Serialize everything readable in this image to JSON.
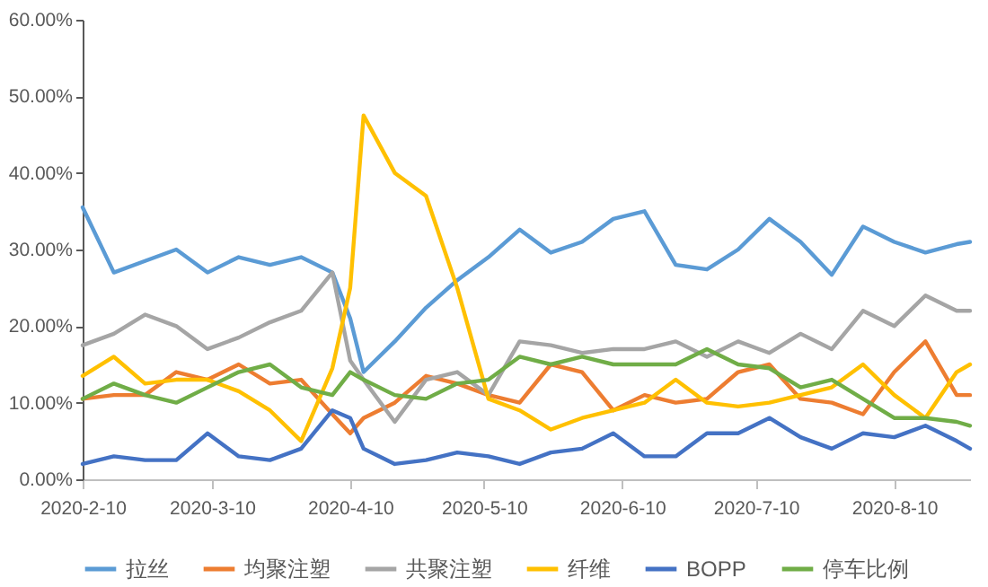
{
  "chart_data": {
    "type": "line",
    "x": [
      "2020-02-10",
      "2020-02-17",
      "2020-02-24",
      "2020-03-02",
      "2020-03-09",
      "2020-03-16",
      "2020-03-23",
      "2020-03-30",
      "2020-04-06",
      "2020-04-10",
      "2020-04-13",
      "2020-04-20",
      "2020-04-27",
      "2020-05-04",
      "2020-05-11",
      "2020-05-18",
      "2020-05-25",
      "2020-06-01",
      "2020-06-08",
      "2020-06-15",
      "2020-06-22",
      "2020-06-29",
      "2020-07-06",
      "2020-07-13",
      "2020-07-20",
      "2020-07-27",
      "2020-08-03",
      "2020-08-10",
      "2020-08-17",
      "2020-08-24",
      "2020-08-27"
    ],
    "series": [
      {
        "name": "拉丝",
        "color": "#5b9bd5",
        "values": [
          35.5,
          27,
          28.5,
          30,
          27,
          29,
          28,
          29,
          27,
          21,
          14,
          18,
          22.4,
          26,
          29,
          32.6,
          29.6,
          31,
          34,
          35,
          28,
          27.4,
          30,
          34,
          31,
          26.7,
          33,
          31,
          29.6,
          30.7,
          31
        ]
      },
      {
        "name": "均聚注塑",
        "color": "#ed7d31",
        "values": [
          10.5,
          11,
          11,
          14,
          13,
          15,
          12.5,
          13,
          8.5,
          6,
          8,
          10,
          13.5,
          12.5,
          11,
          10,
          15,
          14,
          9,
          11,
          10,
          10.5,
          14,
          15,
          10.5,
          10,
          8.5,
          14,
          18,
          11,
          11
        ]
      },
      {
        "name": "共聚注塑",
        "color": "#a5a5a5",
        "values": [
          17.5,
          19,
          21.5,
          20,
          17,
          18.5,
          20.5,
          22,
          27,
          15.5,
          13,
          7.5,
          13,
          14,
          11,
          18,
          17.5,
          16.5,
          17,
          17,
          18,
          16,
          18,
          16.5,
          19,
          17,
          22,
          20,
          24,
          22,
          22
        ]
      },
      {
        "name": "纤维",
        "color": "#ffc000",
        "values": [
          13.5,
          16,
          12.5,
          13,
          13,
          11.5,
          9,
          5,
          14.5,
          25,
          47.5,
          40,
          37,
          25,
          10.5,
          9,
          6.5,
          8,
          9,
          10,
          13,
          10,
          9.5,
          10,
          11,
          12,
          15,
          11,
          8,
          14,
          15
        ]
      },
      {
        "name": "BOPP",
        "color": "#4472c4",
        "values": [
          2,
          3,
          2.5,
          2.5,
          6,
          3,
          2.5,
          4,
          9,
          8,
          4,
          2,
          2.5,
          3.5,
          3,
          2,
          3.5,
          4,
          6,
          3,
          3,
          6,
          6,
          8,
          5.5,
          4,
          6,
          5.5,
          7,
          5,
          4
        ]
      },
      {
        "name": "停车比例",
        "color": "#70ad47",
        "values": [
          10.5,
          12.5,
          11,
          10,
          12,
          14,
          15,
          12,
          11,
          14,
          13,
          11,
          10.5,
          12.5,
          13,
          16,
          15,
          16,
          15,
          15,
          15,
          17,
          15,
          14.5,
          12,
          13,
          10.5,
          8,
          8,
          7.5,
          7
        ]
      }
    ],
    "xlim": [
      "2020-02-10",
      "2020-08-27"
    ],
    "xticks": [
      {
        "value": "2020-02-10",
        "label": "2020-2-10"
      },
      {
        "value": "2020-03-10",
        "label": "2020-3-10"
      },
      {
        "value": "2020-04-10",
        "label": "2020-4-10"
      },
      {
        "value": "2020-05-10",
        "label": "2020-5-10"
      },
      {
        "value": "2020-06-10",
        "label": "2020-6-10"
      },
      {
        "value": "2020-07-10",
        "label": "2020-7-10"
      },
      {
        "value": "2020-08-10",
        "label": "2020-8-10"
      }
    ],
    "ylim": [
      0,
      60
    ],
    "yticks": [
      {
        "value": 0,
        "label": "0.00%"
      },
      {
        "value": 10,
        "label": "10.00%"
      },
      {
        "value": 20,
        "label": "20.00%"
      },
      {
        "value": 30,
        "label": "30.00%"
      },
      {
        "value": 40,
        "label": "40.00%"
      },
      {
        "value": 50,
        "label": "50.00%"
      },
      {
        "value": 60,
        "label": "60.00%"
      }
    ],
    "grid": false,
    "legend": "bottom",
    "marker": "none",
    "line_style": "solid"
  }
}
